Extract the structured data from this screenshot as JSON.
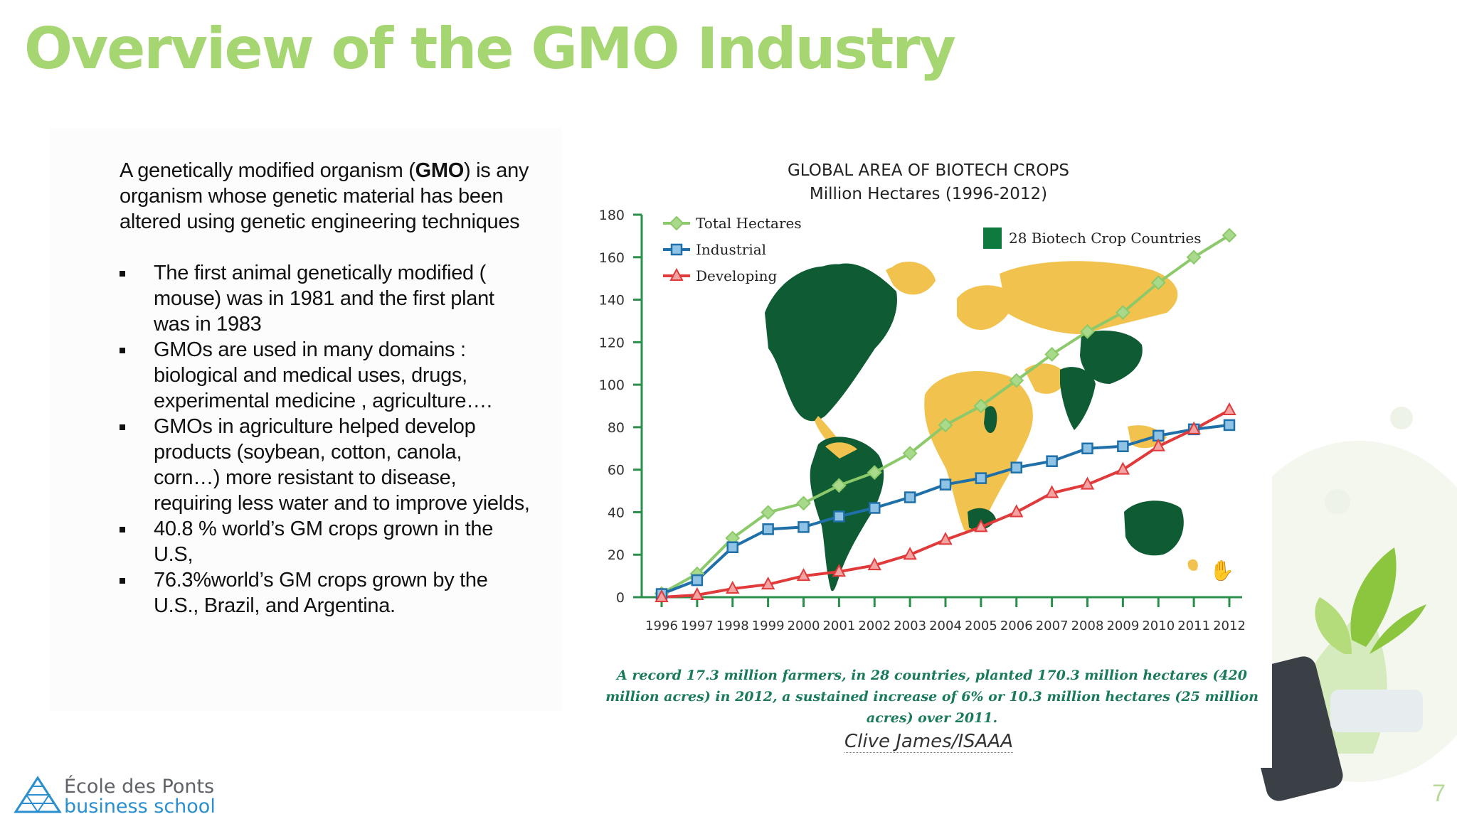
{
  "slide": {
    "title": "Overview of the GMO Industry",
    "intro_pre": "A genetically modified organism (",
    "intro_bold": "GMO",
    "intro_post": ") is any organism whose genetic material has been altered using genetic engineering techniques",
    "bullets": [
      "The first animal genetically modified ( mouse) was in 1981 and the first plant was in 1983",
      "GMOs are used in many domains : biological and medical uses, drugs, experimental medicine , agriculture….",
      "GMOs in agriculture helped develop products (soybean, cotton, canola, corn…)  more resistant to disease, requiring less water and to improve yields,",
      "40.8 % world’s GM crops grown in the U.S,",
      "76.3%world’s GM crops grown by the U.S., Brazil, and Argentina."
    ],
    "page_number": "7",
    "logo_line1": "École des Ponts",
    "logo_line2": "business school",
    "colors": {
      "title": "#a6d672",
      "accent_green": "#1a7a5c"
    }
  },
  "chart_data": {
    "type": "line",
    "title": "GLOBAL AREA OF BIOTECH CROPS",
    "subtitle": "Million Hectares (1996-2012)",
    "x": [
      "1996",
      "1997",
      "1998",
      "1999",
      "2000",
      "2001",
      "2002",
      "2003",
      "2004",
      "2005",
      "2006",
      "2007",
      "2008",
      "2009",
      "2010",
      "2011",
      "2012"
    ],
    "yticks": [
      0,
      20,
      40,
      60,
      80,
      100,
      120,
      140,
      160,
      180
    ],
    "ylim": [
      0,
      180
    ],
    "series": [
      {
        "name": "Total Hectares",
        "marker": "diamond",
        "color": "#8bc96a",
        "values": [
          1.7,
          11,
          27.8,
          39.9,
          44.2,
          52.6,
          58.7,
          67.7,
          81,
          90,
          102,
          114.3,
          125,
          134,
          148,
          160,
          170.3
        ]
      },
      {
        "name": "Industrial",
        "marker": "square",
        "color": "#1f6fa8",
        "values": [
          1.5,
          8,
          23.5,
          32,
          33,
          38,
          42,
          47,
          53,
          56,
          61,
          64,
          70,
          71,
          76,
          79,
          81
        ]
      },
      {
        "name": "Developing",
        "marker": "triangle",
        "color": "#e03a3a",
        "values": [
          0,
          1,
          4,
          6,
          10,
          12,
          15,
          20,
          27,
          33,
          40,
          49,
          53,
          60,
          71,
          79,
          88
        ]
      }
    ],
    "legend_extra": "28 Biotech Crop Countries",
    "legend_position": "top-left",
    "caption": "A record 17.3 million farmers, in 28 countries, planted 170.3 million hectares (420 million acres) in 2012, a sustained increase of 6% or 10.3 million hectares (25 million acres) over 2011.",
    "credit": "Clive James/ISAAA"
  }
}
